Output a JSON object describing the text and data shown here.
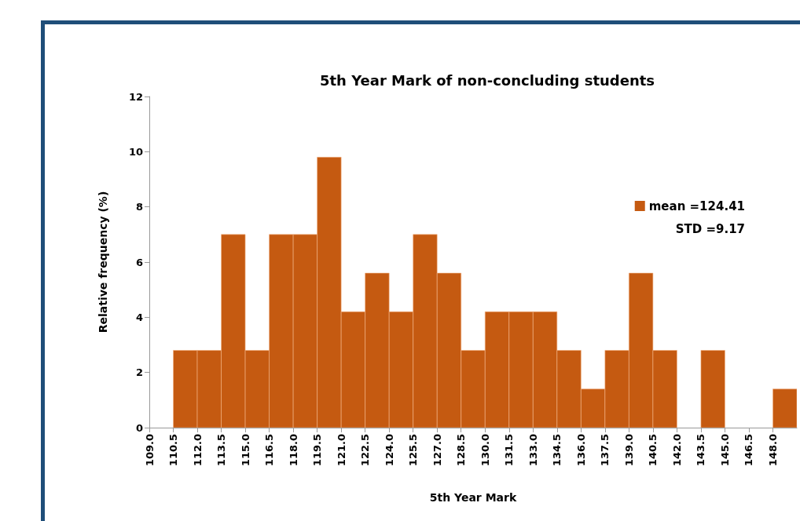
{
  "chart_data": {
    "type": "histogram",
    "title": "5th Year Mark of non-concluding students",
    "xlabel": "5th Year Mark",
    "ylabel": "Relative frequency (%)",
    "bins": [
      109.0,
      110.5,
      112.0,
      113.5,
      115.0,
      116.5,
      118.0,
      119.5,
      121.0,
      122.5,
      124.0,
      125.5,
      127.0,
      128.5,
      130.0,
      131.5,
      133.0,
      134.5,
      136.0,
      137.5,
      139.0,
      140.5,
      142.0,
      143.5,
      145.0,
      146.5,
      148.0,
      149.5
    ],
    "series": [
      {
        "name": "mean =124.41",
        "color": "#c55a11",
        "values": [
          0,
          2.8,
          2.8,
          7,
          2.8,
          7,
          7,
          9.8,
          4.2,
          5.6,
          4.2,
          7,
          5.6,
          2.8,
          4.2,
          4.2,
          4.2,
          2.8,
          1.4,
          2.8,
          5.6,
          2.8,
          0,
          2.8,
          0,
          0,
          1.4
        ]
      }
    ],
    "annotations": [
      "STD =9.17"
    ],
    "xlim": [
      109.0,
      149.5
    ],
    "xticks": [
      {
        "value": 109.0,
        "label": "109.0"
      },
      {
        "value": 110.5,
        "label": "110.5"
      },
      {
        "value": 112.0,
        "label": "112.0"
      },
      {
        "value": 113.5,
        "label": "113.5"
      },
      {
        "value": 115.0,
        "label": "115.0"
      },
      {
        "value": 116.5,
        "label": "116.5"
      },
      {
        "value": 118.0,
        "label": "118.0"
      },
      {
        "value": 119.5,
        "label": "119.5"
      },
      {
        "value": 121.0,
        "label": "121.0"
      },
      {
        "value": 122.5,
        "label": "122.5"
      },
      {
        "value": 124.0,
        "label": "124.0"
      },
      {
        "value": 125.5,
        "label": "125.5"
      },
      {
        "value": 127.0,
        "label": "127.0"
      },
      {
        "value": 128.5,
        "label": "128.5"
      },
      {
        "value": 130.0,
        "label": "130.0"
      },
      {
        "value": 131.5,
        "label": "131.5"
      },
      {
        "value": 133.0,
        "label": "133.0"
      },
      {
        "value": 134.5,
        "label": "134.5"
      },
      {
        "value": 136.0,
        "label": "136.0"
      },
      {
        "value": 137.5,
        "label": "137.5"
      },
      {
        "value": 139.0,
        "label": "139.0"
      },
      {
        "value": 140.5,
        "label": "140.5"
      },
      {
        "value": 142.0,
        "label": "142.0"
      },
      {
        "value": 143.5,
        "label": "143.5"
      },
      {
        "value": 145.0,
        "label": "145.0"
      },
      {
        "value": 146.5,
        "label": "146.5"
      },
      {
        "value": 148.0,
        "label": "148.0"
      }
    ],
    "ylim": [
      0,
      12
    ],
    "yticks": [
      0,
      2,
      4,
      6,
      8,
      10,
      12
    ],
    "grid": false,
    "legend": "top right"
  }
}
